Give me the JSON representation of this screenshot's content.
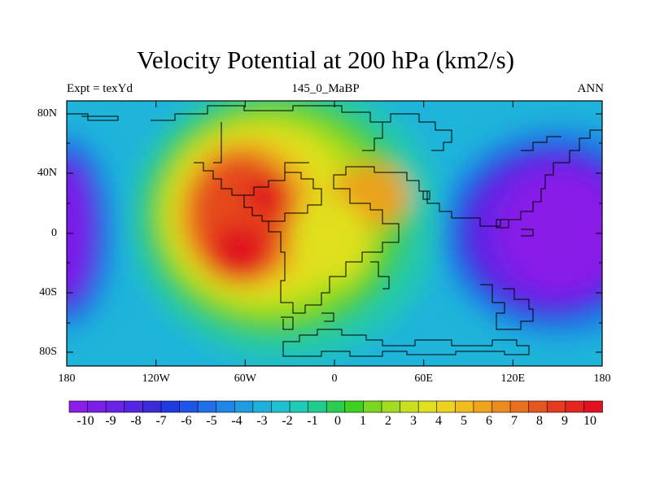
{
  "title": "Velocity Potential at 200 hPa (km2/s)",
  "subtitle_left": "Expt = texYd",
  "subtitle_center": "145_0_MaBP",
  "subtitle_right": "ANN",
  "x_ticks": [
    "180",
    "120W",
    "60W",
    "0",
    "60E",
    "120E",
    "180"
  ],
  "y_ticks": [
    "80N",
    "40N",
    "0",
    "40S",
    "80S"
  ],
  "colorbar": {
    "labels": [
      "-10",
      "-9",
      "-8",
      "-7",
      "-6",
      "-5",
      "-4",
      "-3",
      "-2",
      "-1",
      "0",
      "1",
      "2",
      "3",
      "4",
      "5",
      "6",
      "7",
      "8",
      "9",
      "10"
    ],
    "colors": [
      "#8a1ee8",
      "#7a1ee8",
      "#6a23e6",
      "#5526e0",
      "#3a2ad8",
      "#1e3ae0",
      "#1f55e8",
      "#2070e8",
      "#1f86e6",
      "#1f9ce0",
      "#1fb0da",
      "#1fc0d0",
      "#20c8b8",
      "#20cc90",
      "#2ccc50",
      "#40d01f",
      "#7ad61f",
      "#a0dc1f",
      "#c8e01f",
      "#e0e01f",
      "#eed21f",
      "#f0bc1f",
      "#eea41f",
      "#ea8a1f",
      "#e8701f",
      "#e4561f",
      "#e43c1f",
      "#e4241f",
      "#e0121f"
    ]
  },
  "map": {
    "lon_range": [
      -180,
      180
    ],
    "lat_range": [
      -90,
      90
    ],
    "units": "km2/s",
    "level": "200 hPa",
    "max_center": {
      "lon": -70,
      "lat": -20,
      "value": 10
    },
    "min_center": {
      "lon": 160,
      "lat": 5,
      "value": -10
    }
  }
}
